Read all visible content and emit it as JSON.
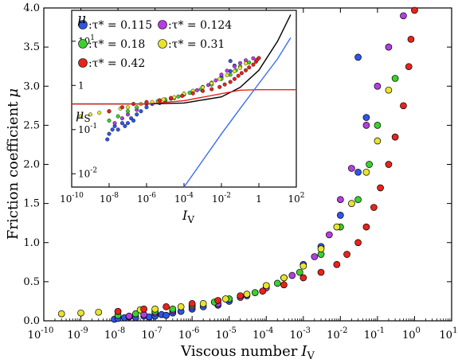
{
  "chart_data": [
    {
      "type": "scatter",
      "xlabel": "Viscous number",
      "xlabel_symbol": "I",
      "xlabel_sub": "V",
      "ylabel": "Friction coefficient",
      "ylabel_symbol": "μ",
      "x_scale": "log",
      "xlim": [
        1e-10,
        10
      ],
      "ylim": [
        0,
        4
      ],
      "x_tick_exponents": [
        -10,
        -9,
        -8,
        -7,
        -6,
        -5,
        -4,
        -3,
        -2,
        -1,
        0,
        1
      ],
      "x_tick_base": "10",
      "y_ticks": [
        "0.0",
        "0.5",
        "1.0",
        "1.5",
        "2.0",
        "2.5",
        "3.0",
        "3.5",
        "4.0"
      ],
      "series": [
        {
          "name": ":τ* = 0.115",
          "color": "#2f55e8",
          "points": [
            [
              8e-09,
              0.02
            ],
            [
              1e-08,
              0.03
            ],
            [
              1.5e-08,
              0.04
            ],
            [
              2e-08,
              0.05
            ],
            [
              3e-08,
              0.04
            ],
            [
              5e-08,
              0.06
            ],
            [
              7e-08,
              0.05
            ],
            [
              1e-07,
              0.06
            ],
            [
              1.5e-07,
              0.08
            ],
            [
              2e-07,
              0.07
            ],
            [
              3e-07,
              0.1
            ],
            [
              5e-07,
              0.12
            ],
            [
              1e-06,
              0.15
            ],
            [
              2e-06,
              0.18
            ],
            [
              5e-06,
              0.2
            ],
            [
              1e-05,
              0.25
            ],
            [
              3e-05,
              0.32
            ],
            [
              0.0001,
              0.45
            ],
            [
              0.0003,
              0.55
            ],
            [
              0.001,
              0.72
            ],
            [
              0.003,
              0.95
            ],
            [
              0.01,
              1.35
            ],
            [
              0.03,
              1.9
            ],
            [
              0.05,
              2.6
            ],
            [
              0.03,
              3.37
            ]
          ]
        },
        {
          "name": ":τ* = 0.124",
          "color": "#b43ee0",
          "points": [
            [
              2e-08,
              0.06
            ],
            [
              5e-08,
              0.08
            ],
            [
              1e-07,
              0.1
            ],
            [
              3e-07,
              0.13
            ],
            [
              1e-06,
              0.18
            ],
            [
              5e-06,
              0.22
            ],
            [
              2e-05,
              0.3
            ],
            [
              0.0001,
              0.42
            ],
            [
              0.0005,
              0.58
            ],
            [
              0.002,
              0.82
            ],
            [
              0.005,
              1.1
            ],
            [
              0.01,
              1.55
            ],
            [
              0.02,
              1.95
            ],
            [
              0.05,
              2.5
            ],
            [
              0.1,
              3.0
            ],
            [
              0.2,
              3.5
            ],
            [
              0.5,
              3.9
            ]
          ]
        },
        {
          "name": ":τ* = 0.18",
          "color": "#3ad12c",
          "points": [
            [
              1e-08,
              0.07
            ],
            [
              3e-08,
              0.09
            ],
            [
              1e-07,
              0.12
            ],
            [
              3e-07,
              0.15
            ],
            [
              1e-06,
              0.2
            ],
            [
              4e-06,
              0.24
            ],
            [
              1e-05,
              0.28
            ],
            [
              5e-05,
              0.36
            ],
            [
              0.0002,
              0.48
            ],
            [
              0.0008,
              0.62
            ],
            [
              0.003,
              0.85
            ],
            [
              0.01,
              1.2
            ],
            [
              0.03,
              1.55
            ],
            [
              0.06,
              2.0
            ],
            [
              0.1,
              2.5
            ],
            [
              0.3,
              3.1
            ]
          ]
        },
        {
          "name": ":τ* = 0.31",
          "color": "#e8e42c",
          "points": [
            [
              3e-10,
              0.09
            ],
            [
              1e-09,
              0.1
            ],
            [
              3e-09,
              0.11
            ],
            [
              1e-08,
              0.12
            ],
            [
              4e-08,
              0.14
            ],
            [
              1e-07,
              0.15
            ],
            [
              5e-07,
              0.18
            ],
            [
              2e-06,
              0.22
            ],
            [
              8e-06,
              0.28
            ],
            [
              3e-05,
              0.34
            ],
            [
              0.0001,
              0.45
            ],
            [
              0.0003,
              0.55
            ],
            [
              0.001,
              0.7
            ],
            [
              0.003,
              0.92
            ],
            [
              0.008,
              1.2
            ],
            [
              0.02,
              1.5
            ],
            [
              0.05,
              1.9
            ],
            [
              0.1,
              2.3
            ],
            [
              0.2,
              2.95
            ]
          ]
        },
        {
          "name": ":τ* = 0.42",
          "color": "#e8231b",
          "points": [
            [
              1e-08,
              0.12
            ],
            [
              5e-08,
              0.15
            ],
            [
              2e-07,
              0.18
            ],
            [
              1e-06,
              0.22
            ],
            [
              5e-06,
              0.26
            ],
            [
              2e-05,
              0.32
            ],
            [
              8e-05,
              0.38
            ],
            [
              0.0003,
              0.46
            ],
            [
              0.001,
              0.55
            ],
            [
              0.003,
              0.62
            ],
            [
              0.008,
              0.72
            ],
            [
              0.015,
              0.85
            ],
            [
              0.03,
              1.0
            ],
            [
              0.05,
              1.2
            ],
            [
              0.08,
              1.45
            ],
            [
              0.12,
              1.7
            ],
            [
              0.2,
              2.0
            ],
            [
              0.3,
              2.35
            ],
            [
              0.5,
              2.75
            ],
            [
              0.7,
              3.25
            ],
            [
              0.8,
              3.6
            ],
            [
              1.0,
              3.97
            ]
          ]
        }
      ]
    },
    {
      "type": "scatter",
      "role": "inset",
      "xlabel_symbol": "I",
      "xlabel_sub": "V",
      "ylabel_symbol": "μ",
      "mu_s_label": "μ",
      "mu_s_sub": "S",
      "x_scale": "log",
      "y_scale": "log",
      "xlim": [
        1e-10,
        100
      ],
      "ylim": [
        0.005,
        50
      ],
      "x_tick_exponents": [
        -10,
        -8,
        -6,
        -4,
        -2,
        0,
        2
      ],
      "x_tick_labels_plain": {
        "0": "1"
      },
      "y_ticks": [
        {
          "value": 10,
          "base": "10",
          "exp": "1"
        },
        {
          "value": 1,
          "base": "1",
          "exp": ""
        },
        {
          "value": 0.1,
          "base": "10",
          "exp": "-1"
        },
        {
          "value": 0.01,
          "base": "10",
          "exp": "-2"
        }
      ],
      "curves": [
        {
          "color": "#000000",
          "points": [
            [
              1e-10,
              0.38
            ],
            [
              1e-06,
              0.38
            ],
            [
              0.0001,
              0.4
            ],
            [
              0.01,
              0.55
            ],
            [
              0.1,
              0.9
            ],
            [
              1,
              2.2
            ],
            [
              10,
              10
            ],
            [
              50,
              40
            ]
          ]
        },
        {
          "color": "#e8231b",
          "points": [
            [
              1e-10,
              0.38
            ],
            [
              1e-06,
              0.38
            ],
            [
              0.0001,
              0.45
            ],
            [
              0.01,
              0.65
            ],
            [
              0.1,
              0.78
            ],
            [
              1,
              0.8
            ],
            [
              10,
              0.8
            ],
            [
              100,
              0.8
            ]
          ]
        },
        {
          "color": "#3a6ef2",
          "points": [
            [
              0.0001,
              0.005
            ],
            [
              0.001,
              0.02
            ],
            [
              0.01,
              0.08
            ],
            [
              0.1,
              0.3
            ],
            [
              1,
              1.1
            ],
            [
              10,
              4
            ],
            [
              50,
              12
            ]
          ]
        }
      ]
    }
  ]
}
